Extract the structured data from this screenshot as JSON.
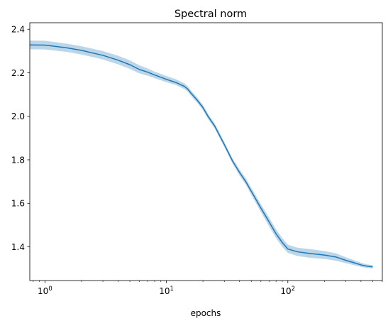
{
  "chart_data": {
    "type": "line",
    "title": "Spectral norm",
    "xlabel": "epochs",
    "ylabel": "",
    "xscale": "log",
    "xlim": [
      0.75,
      600
    ],
    "ylim": [
      1.245,
      2.43
    ],
    "grid": false,
    "legend": "none",
    "x_ticks": [
      {
        "value": 1,
        "base": "10",
        "exp": "0"
      },
      {
        "value": 10,
        "base": "10",
        "exp": "1"
      },
      {
        "value": 100,
        "base": "10",
        "exp": "2"
      }
    ],
    "y_ticks": [
      "1.4",
      "1.6",
      "1.8",
      "2.0",
      "2.2",
      "2.4"
    ],
    "series": [
      {
        "color": "#1f77b4",
        "band_color": "#1f77b4",
        "x": [
          0.75,
          1,
          1.5,
          2,
          3,
          4,
          5,
          6,
          7,
          8,
          10,
          12,
          14,
          15,
          16,
          18,
          20,
          22,
          25,
          30,
          35,
          40,
          45,
          50,
          55,
          60,
          70,
          80,
          90,
          100,
          120,
          150,
          200,
          250,
          300,
          350,
          400,
          450,
          500
        ],
        "y": [
          2.328,
          2.327,
          2.315,
          2.303,
          2.28,
          2.258,
          2.237,
          2.215,
          2.203,
          2.19,
          2.17,
          2.155,
          2.138,
          2.125,
          2.105,
          2.073,
          2.04,
          2.0,
          1.955,
          1.87,
          1.795,
          1.742,
          1.7,
          1.655,
          1.615,
          1.578,
          1.515,
          1.46,
          1.42,
          1.39,
          1.377,
          1.37,
          1.362,
          1.353,
          1.338,
          1.327,
          1.317,
          1.311,
          1.308
        ],
        "y_lower": [
          2.308,
          2.307,
          2.296,
          2.284,
          2.261,
          2.239,
          2.218,
          2.197,
          2.187,
          2.175,
          2.157,
          2.143,
          2.126,
          2.113,
          2.093,
          2.061,
          2.028,
          1.988,
          1.943,
          1.858,
          1.783,
          1.728,
          1.686,
          1.64,
          1.598,
          1.56,
          1.495,
          1.44,
          1.4,
          1.372,
          1.358,
          1.35,
          1.344,
          1.336,
          1.325,
          1.316,
          1.308,
          1.303,
          1.3
        ],
        "y_upper": [
          2.348,
          2.347,
          2.334,
          2.322,
          2.3,
          2.278,
          2.257,
          2.234,
          2.22,
          2.205,
          2.185,
          2.17,
          2.152,
          2.138,
          2.117,
          2.085,
          2.052,
          2.012,
          1.967,
          1.882,
          1.807,
          1.756,
          1.715,
          1.67,
          1.632,
          1.596,
          1.535,
          1.48,
          1.44,
          1.41,
          1.396,
          1.39,
          1.381,
          1.37,
          1.352,
          1.339,
          1.327,
          1.319,
          1.316
        ]
      }
    ]
  }
}
